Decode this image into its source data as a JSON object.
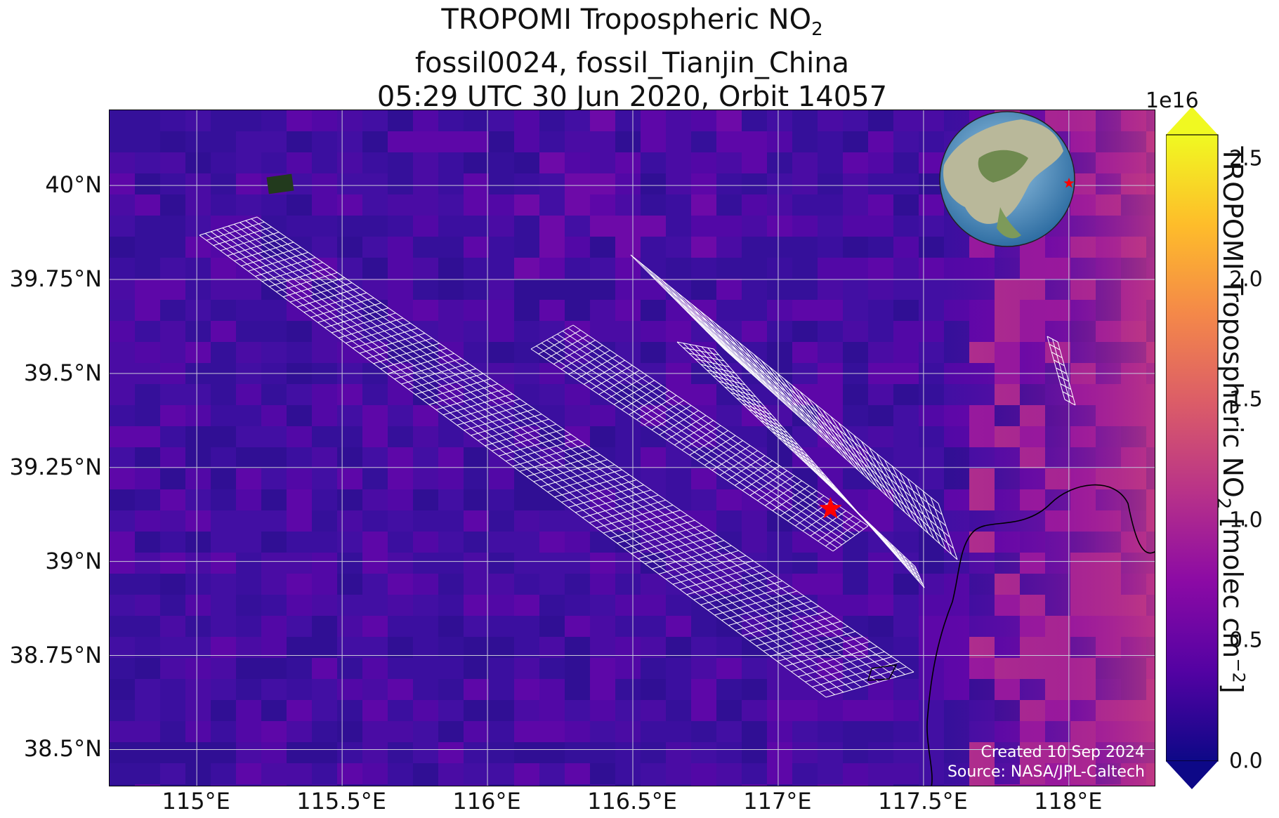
{
  "title": {
    "line1_prefix": "TROPOMI Tropospheric NO",
    "line1_sub": "2",
    "line2": "fossil0024, fossil_Tianjin_China",
    "line3": "05:29 UTC 30 Jun 2020, Orbit 14057"
  },
  "map": {
    "lat_ticks": [
      "40°N",
      "39.75°N",
      "39.5°N",
      "39.25°N",
      "39°N",
      "38.75°N",
      "38.5°N"
    ],
    "lon_ticks": [
      "115°E",
      "115.5°E",
      "116°E",
      "116.5°E",
      "117°E",
      "117.5°E",
      "118°E"
    ],
    "lat_range": [
      38.4,
      40.2
    ],
    "lon_range": [
      114.7,
      118.3
    ],
    "gridlines": true,
    "background_color": "#3a0f9e",
    "target_marker": {
      "name": "fossil_Tianjin_China",
      "lon": 117.18,
      "lat": 39.14,
      "color": "#ff0000",
      "icon": "star-icon"
    },
    "credit_line1": "Created 10 Sep 2024",
    "credit_line2": "Source: NASA/JPL-Caltech",
    "inset": {
      "type": "globe",
      "marker_color": "#ff0000",
      "icon": "globe-icon"
    }
  },
  "colorbar": {
    "label_prefix": "TROPOMI Tropospheric NO",
    "label_sub": "2",
    "label_suffix_pre": " [molec cm",
    "label_sup": "−2",
    "label_suffix_post": "]",
    "exponent": "1e16",
    "ticks": [
      "0.0",
      "0.5",
      "1.0",
      "1.5",
      "2.0",
      "2.5"
    ],
    "range": [
      0.0,
      2.6
    ],
    "colormap": "plasma",
    "colors": [
      "#0d0887",
      "#5302a3",
      "#8b0aa5",
      "#b83289",
      "#db5c68",
      "#f48849",
      "#febd2a",
      "#f0f921"
    ],
    "extend": "both"
  }
}
